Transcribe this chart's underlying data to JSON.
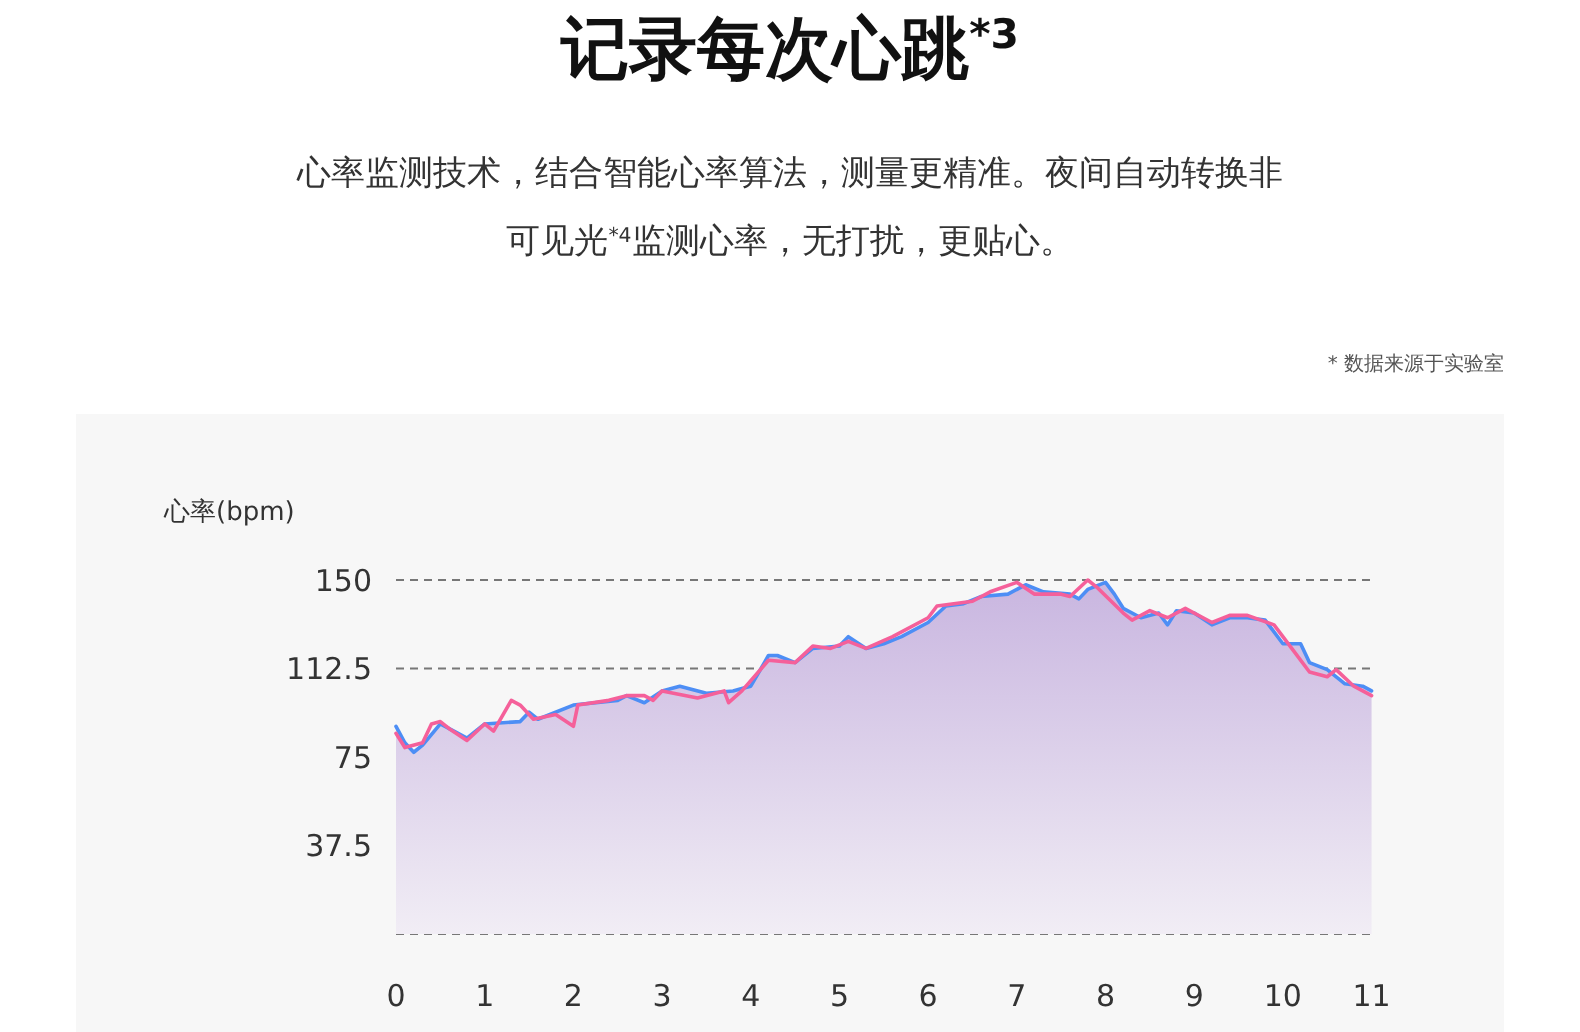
{
  "chart_data": {
    "type": "line",
    "title": "记录每次心跳$^{*3}$",
    "subtitle": "心率监测技术，结合智能心率算法，测量更精准。夜间自动转换非可见光$^{*4}$监测心率，无打扰，更贴心。",
    "annotations": [
      "* 数据来源于实验室"
    ],
    "ylabel": "心率(bpm)",
    "xlim": [
      0,
      11.05
    ],
    "xticks": [
      0,
      1,
      2,
      3,
      4,
      5,
      6,
      7,
      8,
      9,
      10,
      11
    ],
    "ylim": [
      0,
      150
    ],
    "yticks": [
      {
        "value": 0,
        "label": null
      },
      37.5,
      75,
      112.5,
      150
    ],
    "grid": "y",
    "line_style": "solid",
    "marker": "none",
    "series": [
      {
        "type": "area",
        "color": "#4d8ef5",
        "x": [
          0,
          0.1,
          0.2,
          0.3,
          0.5,
          0.8,
          1.0,
          1.4,
          1.5,
          1.6,
          2.0,
          2.5,
          2.6,
          2.8,
          3.0,
          3.2,
          3.5,
          3.8,
          3.9,
          4.0,
          4.2,
          4.3,
          4.5,
          4.7,
          5.0,
          5.1,
          5.3,
          5.5,
          5.7,
          6.0,
          6.2,
          6.4,
          6.6,
          6.9,
          7.1,
          7.3,
          7.6,
          7.7,
          7.8,
          8.0,
          8.1,
          8.2,
          8.4,
          8.6,
          8.7,
          8.8,
          9.0,
          9.2,
          9.4,
          9.6,
          9.8,
          10.0,
          10.2,
          10.3,
          10.5,
          10.7,
          10.9,
          11.0
        ],
        "values": [
          88,
          81,
          77,
          80,
          89,
          83,
          89,
          90,
          94,
          91,
          97,
          99,
          101,
          98,
          103,
          105,
          102,
          103,
          104,
          105,
          118,
          118,
          115,
          121,
          122,
          126,
          121,
          123,
          126,
          132,
          139,
          140,
          143,
          144,
          148,
          145,
          144,
          142,
          146,
          149,
          144,
          138,
          134,
          136,
          131,
          137,
          136,
          131,
          134,
          134,
          133,
          123,
          123,
          115,
          112,
          106,
          105,
          103
        ]
      },
      {
        "type": "line",
        "color": "#f5609a",
        "x": [
          0,
          0.1,
          0.3,
          0.4,
          0.5,
          0.6,
          0.8,
          1.0,
          1.1,
          1.3,
          1.4,
          1.55,
          1.8,
          2.0,
          2.05,
          2.4,
          2.6,
          2.8,
          2.9,
          3.0,
          3.4,
          3.7,
          3.75,
          3.9,
          4.2,
          4.5,
          4.7,
          4.9,
          5.1,
          5.3,
          5.6,
          6.0,
          6.1,
          6.5,
          6.7,
          7.0,
          7.2,
          7.5,
          7.6,
          7.8,
          7.9,
          8.2,
          8.3,
          8.5,
          8.7,
          8.9,
          9.2,
          9.4,
          9.6,
          9.9,
          10.1,
          10.3,
          10.5,
          10.6,
          10.8,
          11.0
        ],
        "values": [
          85,
          79,
          81,
          89,
          90,
          87,
          82,
          89,
          86,
          99,
          97,
          91,
          93,
          88,
          97,
          99,
          101,
          101,
          99,
          103,
          100,
          103,
          98,
          103,
          116,
          115,
          122,
          121,
          124,
          121,
          126,
          134,
          139,
          141,
          145,
          149,
          144,
          144,
          143,
          150,
          147,
          136,
          133,
          137,
          134,
          138,
          132,
          135,
          135,
          131,
          121,
          111,
          109,
          112,
          105,
          101
        ]
      }
    ]
  }
}
